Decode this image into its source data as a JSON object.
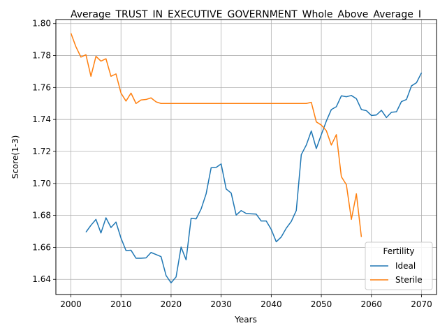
{
  "chart_data": {
    "type": "line",
    "title": "Average_TRUST_IN_EXECUTIVE_GOVERNMENT_Whole_Above_Average_I",
    "xlabel": "Years",
    "ylabel": "Score(1-3)",
    "xlim": [
      1997,
      2073
    ],
    "ylim": [
      1.6305,
      1.8025
    ],
    "xticks": [
      2000,
      2010,
      2020,
      2030,
      2040,
      2050,
      2060,
      2070
    ],
    "yticks": [
      1.64,
      1.66,
      1.68,
      1.7,
      1.72,
      1.74,
      1.76,
      1.78,
      1.8
    ],
    "ytick_labels": [
      "1.64",
      "1.66",
      "1.68",
      "1.70",
      "1.72",
      "1.74",
      "1.76",
      "1.78",
      "1.80"
    ],
    "grid": true,
    "legend": {
      "title": "Fertility",
      "placement": "lower-right"
    },
    "series": [
      {
        "name": "Ideal",
        "color": "#1f77b4",
        "x": [
          2003,
          2004,
          2005,
          2006,
          2007,
          2008,
          2009,
          2010,
          2011,
          2012,
          2013,
          2014,
          2015,
          2016,
          2017,
          2018,
          2019,
          2020,
          2021,
          2022,
          2023,
          2024,
          2025,
          2026,
          2027,
          2028,
          2029,
          2030,
          2031,
          2032,
          2033,
          2034,
          2035,
          2036,
          2037,
          2038,
          2039,
          2040,
          2041,
          2042,
          2043,
          2044,
          2045,
          2046,
          2047,
          2048,
          2049,
          2050,
          2051,
          2052,
          2053,
          2054,
          2055,
          2056,
          2057,
          2058,
          2059,
          2060,
          2061,
          2062,
          2063,
          2064,
          2065,
          2066,
          2067,
          2068,
          2069,
          2070
        ],
        "values": [
          1.6695,
          1.6738,
          1.6775,
          1.669,
          1.6785,
          1.6724,
          1.6758,
          1.6658,
          1.658,
          1.6582,
          1.6532,
          1.6532,
          1.6534,
          1.6568,
          1.6555,
          1.6542,
          1.6424,
          1.6378,
          1.6415,
          1.6602,
          1.6522,
          1.6782,
          1.6778,
          1.684,
          1.6935,
          1.7098,
          1.71,
          1.7122,
          1.6965,
          1.694,
          1.6802,
          1.683,
          1.6812,
          1.681,
          1.6808,
          1.6765,
          1.6765,
          1.6712,
          1.6635,
          1.6665,
          1.672,
          1.6762,
          1.683,
          1.718,
          1.724,
          1.7328,
          1.7218,
          1.7305,
          1.739,
          1.7462,
          1.748,
          1.7548,
          1.7542,
          1.755,
          1.753,
          1.7462,
          1.7455,
          1.7425,
          1.7428,
          1.7457,
          1.7412,
          1.7445,
          1.7448,
          1.7512,
          1.7525,
          1.761,
          1.763,
          1.7692
        ]
      },
      {
        "name": "Sterile",
        "color": "#ff7f0e",
        "x": [
          2000,
          2001,
          2002,
          2003,
          2004,
          2005,
          2006,
          2007,
          2008,
          2009,
          2010,
          2011,
          2012,
          2013,
          2014,
          2015,
          2016,
          2017,
          2018,
          2019,
          2020,
          2021,
          2022,
          2023,
          2024,
          2025,
          2026,
          2027,
          2028,
          2029,
          2030,
          2031,
          2032,
          2033,
          2034,
          2035,
          2036,
          2037,
          2038,
          2039,
          2040,
          2041,
          2042,
          2043,
          2044,
          2045,
          2046,
          2047,
          2048,
          2049,
          2050,
          2051,
          2052,
          2053,
          2054,
          2055,
          2056,
          2057,
          2058
        ],
        "values": [
          1.794,
          1.7855,
          1.779,
          1.7805,
          1.767,
          1.7795,
          1.7765,
          1.778,
          1.767,
          1.7685,
          1.7565,
          1.7515,
          1.7565,
          1.75,
          1.7522,
          1.7525,
          1.7535,
          1.751,
          1.75,
          1.75,
          1.75,
          1.75,
          1.75,
          1.75,
          1.75,
          1.75,
          1.75,
          1.75,
          1.75,
          1.75,
          1.75,
          1.75,
          1.75,
          1.75,
          1.75,
          1.75,
          1.75,
          1.75,
          1.75,
          1.75,
          1.75,
          1.75,
          1.75,
          1.75,
          1.75,
          1.75,
          1.75,
          1.75,
          1.7507,
          1.7385,
          1.7365,
          1.733,
          1.724,
          1.7305,
          1.7042,
          1.6992,
          1.6775,
          1.6935,
          1.6665
        ]
      }
    ]
  }
}
